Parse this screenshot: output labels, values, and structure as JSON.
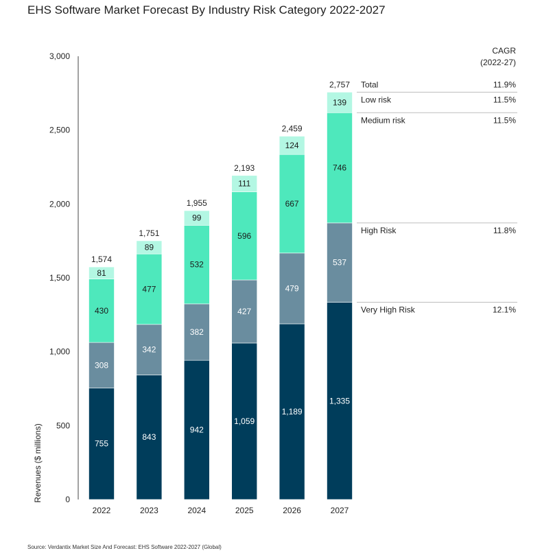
{
  "title": "EHS Software Market Forecast By Industry Risk Category 2022-2027",
  "source": "Source: Verdantix Market Size And Forecast: EHS Software 2022-2027 (Global)",
  "chart_data": {
    "type": "bar",
    "stacked": true,
    "categories": [
      "2022",
      "2023",
      "2024",
      "2025",
      "2026",
      "2027"
    ],
    "ylabel": "Revenues ($ millions)",
    "ylim": [
      0,
      3000
    ],
    "yticks": [
      0,
      500,
      1000,
      1500,
      2000,
      2500,
      3000
    ],
    "ytick_labels": [
      "0",
      "500",
      "1,000",
      "1,500",
      "2,000",
      "2,500",
      "3,000"
    ],
    "totals": [
      1574,
      1751,
      1955,
      2193,
      2459,
      2757
    ],
    "total_labels": [
      "1,574",
      "1,751",
      "1,955",
      "2,193",
      "2,459",
      "2,757"
    ],
    "series": [
      {
        "name": "Very High Risk",
        "color": "#003d5b",
        "text_color": "#ffffff",
        "values": [
          755,
          843,
          942,
          1059,
          1189,
          1335
        ],
        "labels": [
          "755",
          "843",
          "942",
          "1,059",
          "1,189",
          "1,335"
        ]
      },
      {
        "name": "High Risk",
        "color": "#6a8d9f",
        "text_color": "#ffffff",
        "values": [
          308,
          342,
          382,
          427,
          479,
          537
        ],
        "labels": [
          "308",
          "342",
          "382",
          "427",
          "479",
          "537"
        ]
      },
      {
        "name": "Medium risk",
        "color": "#4ee8bc",
        "text_color": "#1a1a1a",
        "values": [
          430,
          477,
          532,
          596,
          667,
          746
        ],
        "labels": [
          "430",
          "477",
          "532",
          "596",
          "667",
          "746"
        ]
      },
      {
        "name": "Low risk",
        "color": "#b3f7e3",
        "text_color": "#1a1a1a",
        "values": [
          81,
          89,
          99,
          111,
          124,
          139
        ],
        "labels": [
          "81",
          "89",
          "99",
          "111",
          "124",
          "139"
        ]
      }
    ],
    "cagr_header": [
      "CAGR",
      "(2022-27)"
    ],
    "cagr": [
      {
        "name": "Total",
        "value": "11.9%"
      },
      {
        "name": "Low risk",
        "value": "11.5%"
      },
      {
        "name": "Medium risk",
        "value": "11.5%"
      },
      {
        "name": "High Risk",
        "value": "11.8%"
      },
      {
        "name": "Very High Risk",
        "value": "12.1%"
      }
    ],
    "grid": false
  }
}
